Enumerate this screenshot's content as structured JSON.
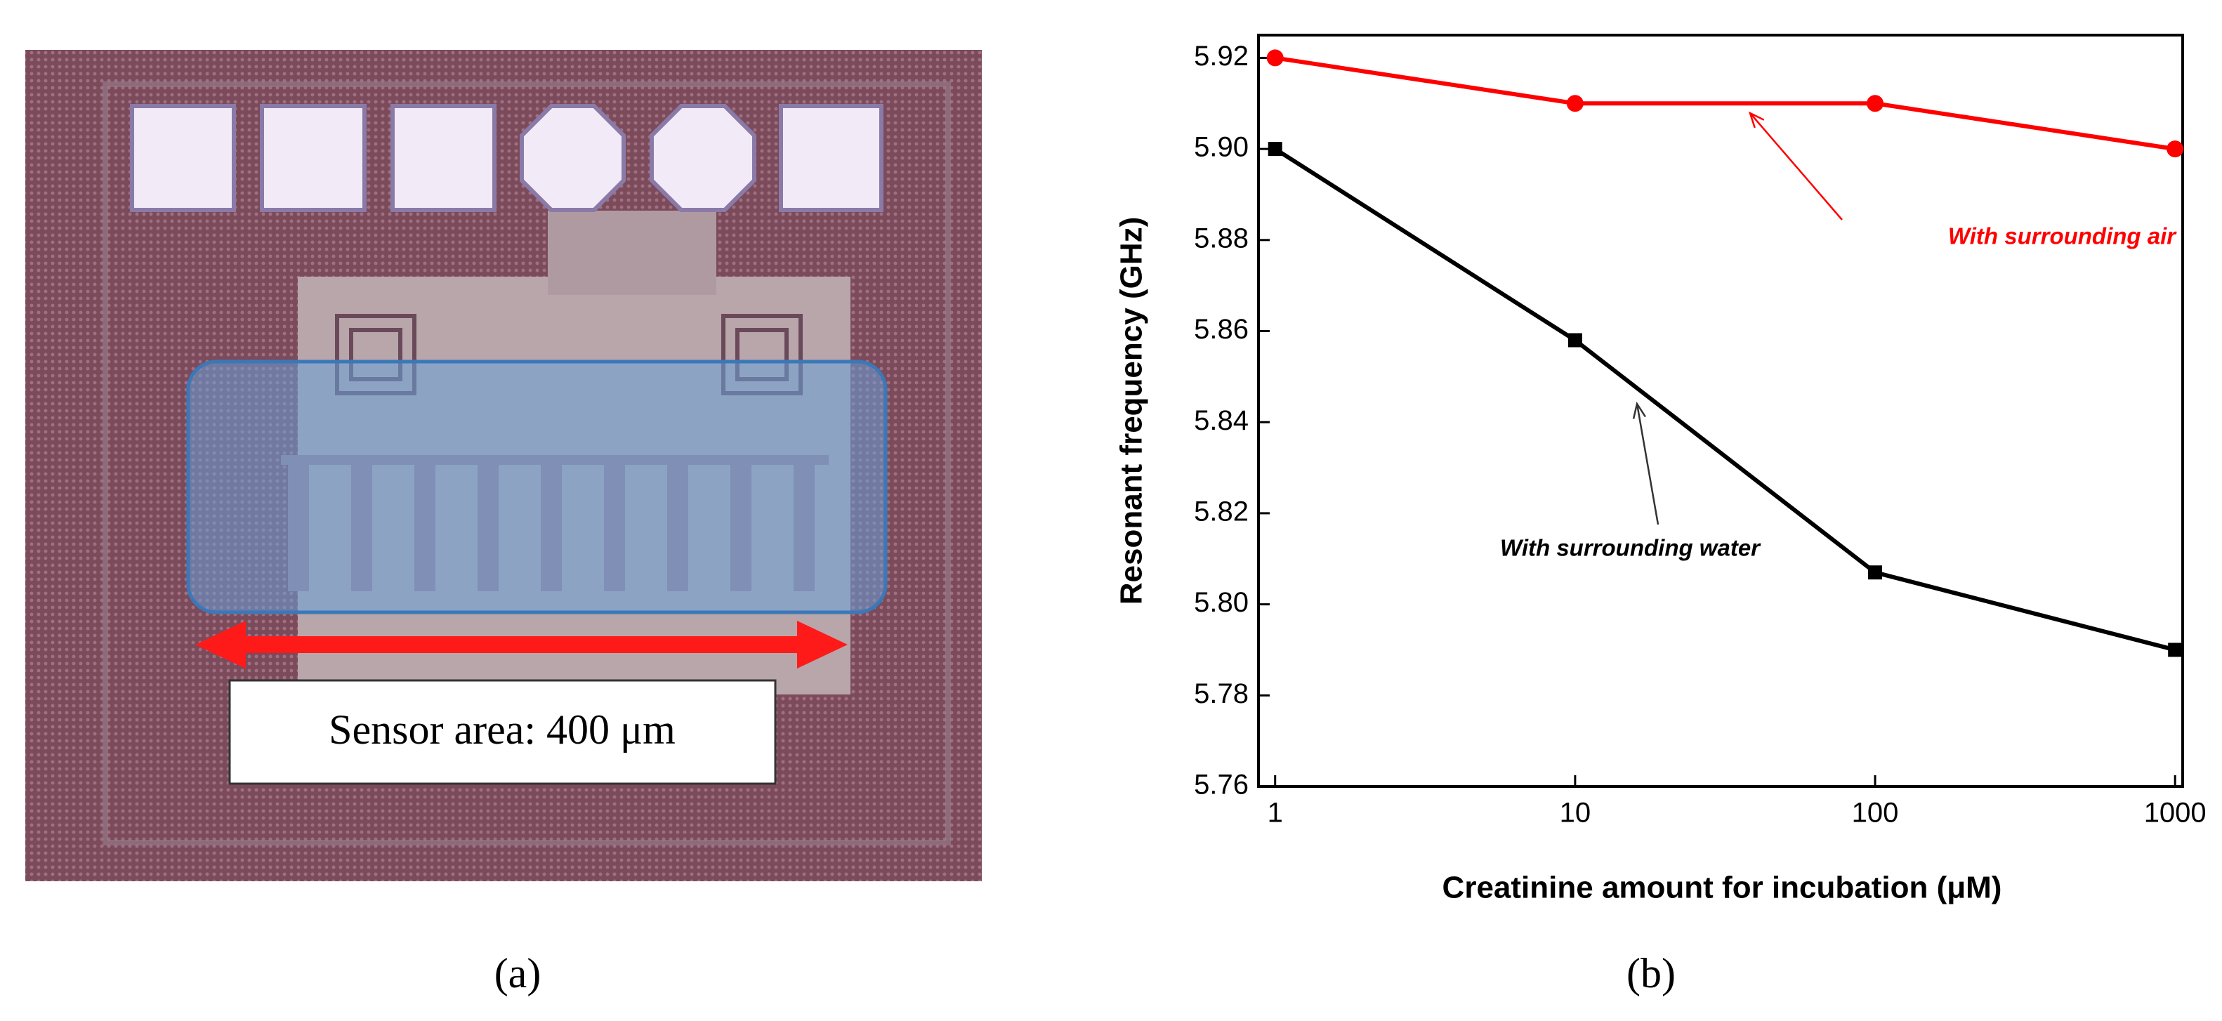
{
  "figure_a": {
    "label_text": "Sensor area: 400 μm",
    "caption": "(a)"
  },
  "chart_data": {
    "type": "line",
    "caption": "(b)",
    "x_label": "Creatinine amount for incubation (μM)",
    "y_label": "Resonant frequency (GHz)",
    "x": [
      1,
      10,
      100,
      1000
    ],
    "series": [
      {
        "name": "With surrounding air",
        "color": "#ff0000",
        "marker": "circle",
        "values": [
          5.92,
          5.91,
          5.91,
          5.9
        ]
      },
      {
        "name": "With surrounding water",
        "color": "#000000",
        "marker": "square",
        "values": [
          5.9,
          5.858,
          5.807,
          5.79
        ]
      }
    ],
    "xscale": "log",
    "xlim": [
      0.88,
      1060.0
    ],
    "ylim": [
      5.76,
      5.925
    ],
    "xticks": [
      1,
      10,
      100,
      1000
    ],
    "yticks": [
      5.76,
      5.78,
      {
        "value": 5.8,
        "label": "5.80"
      },
      5.82,
      5.84,
      5.86,
      5.88,
      {
        "value": 5.9,
        "label": "5.90"
      },
      5.92
    ],
    "grid": false
  }
}
